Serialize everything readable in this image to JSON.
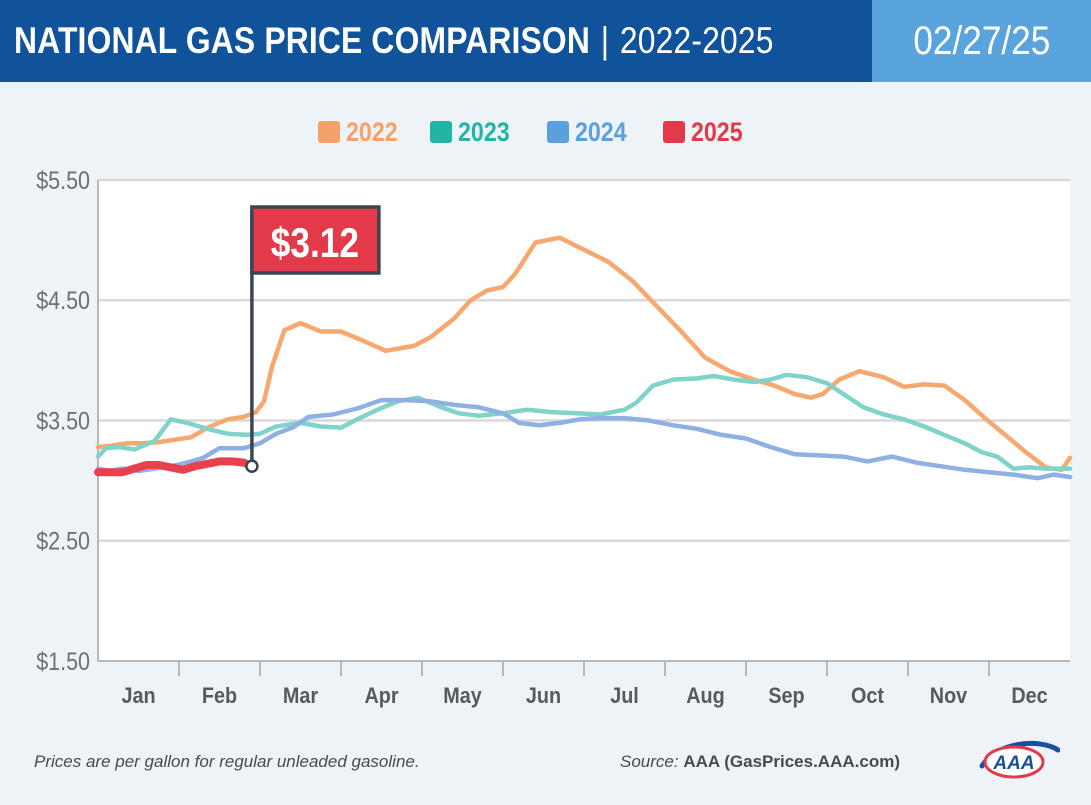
{
  "header": {
    "title_main": "NATIONAL GAS PRICE COMPARISON",
    "title_sep": "|",
    "title_range": "2022-2025",
    "date": "02/27/25"
  },
  "colors": {
    "header_bg": "#11539a",
    "date_bg": "#5aa4de",
    "y2022": "#f7a86f",
    "y2023": "#7fd3c9",
    "y2024": "#8fb0e3",
    "y2025": "#e8404d",
    "legend_2022": "#f4a26a",
    "legend_2023": "#22b4a5",
    "legend_2024": "#5aa0dc",
    "legend_2025": "#e23a48"
  },
  "footer": {
    "note": "Prices are per gallon for regular unleaded gasoline.",
    "source_label": "Source:",
    "source_value": "AAA (GasPrices.AAA.com)",
    "logo_text": "AAA"
  },
  "chart_data": {
    "type": "line",
    "title": "",
    "xlabel": "",
    "ylabel": "",
    "ylim": [
      1.5,
      5.5
    ],
    "yticks": [
      "$5.50",
      "$4.50",
      "$3.50",
      "$2.50",
      "$1.50"
    ],
    "ytick_values": [
      5.5,
      4.5,
      3.5,
      2.5,
      1.5
    ],
    "xlim": [
      0,
      12
    ],
    "categories": [
      "Jan",
      "Feb",
      "Mar",
      "Apr",
      "May",
      "Jun",
      "Jul",
      "Aug",
      "Sep",
      "Oct",
      "Nov",
      "Dec"
    ],
    "grid": true,
    "legend": "top-center",
    "callout": {
      "label": "$3.12",
      "x": 1.9,
      "value": 3.12
    },
    "series": [
      {
        "name": "2022",
        "x": [
          0,
          0.15,
          0.35,
          0.55,
          0.75,
          0.95,
          1.15,
          1.35,
          1.6,
          1.8,
          1.95,
          2.05,
          2.15,
          2.3,
          2.5,
          2.75,
          3.0,
          3.25,
          3.55,
          3.9,
          4.1,
          4.4,
          4.6,
          4.8,
          5.0,
          5.15,
          5.4,
          5.7,
          6.0,
          6.3,
          6.6,
          6.9,
          7.2,
          7.5,
          7.8,
          8.1,
          8.35,
          8.6,
          8.8,
          8.95,
          9.15,
          9.4,
          9.7,
          9.95,
          10.2,
          10.45,
          10.7,
          10.95,
          11.2,
          11.45,
          11.7,
          11.9,
          12.0
        ],
        "values": [
          3.28,
          3.29,
          3.31,
          3.31,
          3.32,
          3.34,
          3.36,
          3.44,
          3.51,
          3.53,
          3.57,
          3.66,
          3.95,
          4.25,
          4.31,
          4.24,
          4.24,
          4.17,
          4.08,
          4.12,
          4.19,
          4.35,
          4.5,
          4.58,
          4.61,
          4.72,
          4.98,
          5.02,
          4.92,
          4.82,
          4.66,
          4.45,
          4.24,
          4.02,
          3.91,
          3.84,
          3.79,
          3.72,
          3.69,
          3.72,
          3.84,
          3.91,
          3.86,
          3.78,
          3.8,
          3.79,
          3.67,
          3.52,
          3.38,
          3.24,
          3.11,
          3.09,
          3.19
        ]
      },
      {
        "name": "2023",
        "x": [
          0,
          0.1,
          0.25,
          0.45,
          0.7,
          0.9,
          1.1,
          1.35,
          1.6,
          1.85,
          2.0,
          2.2,
          2.5,
          2.75,
          3.0,
          3.2,
          3.45,
          3.7,
          3.95,
          4.2,
          4.45,
          4.7,
          5.0,
          5.3,
          5.6,
          5.9,
          6.2,
          6.5,
          6.65,
          6.85,
          7.1,
          7.4,
          7.6,
          7.85,
          8.1,
          8.3,
          8.5,
          8.75,
          9.0,
          9.2,
          9.45,
          9.7,
          9.95,
          10.2,
          10.45,
          10.7,
          10.9,
          11.1,
          11.3,
          11.5,
          11.7,
          12.0
        ],
        "values": [
          3.2,
          3.27,
          3.28,
          3.26,
          3.33,
          3.51,
          3.48,
          3.43,
          3.39,
          3.38,
          3.39,
          3.45,
          3.48,
          3.45,
          3.44,
          3.51,
          3.59,
          3.66,
          3.69,
          3.62,
          3.56,
          3.54,
          3.56,
          3.59,
          3.57,
          3.56,
          3.55,
          3.59,
          3.65,
          3.79,
          3.84,
          3.85,
          3.87,
          3.84,
          3.82,
          3.84,
          3.88,
          3.86,
          3.81,
          3.72,
          3.61,
          3.55,
          3.51,
          3.45,
          3.38,
          3.31,
          3.24,
          3.2,
          3.1,
          3.11,
          3.1,
          3.1
        ]
      },
      {
        "name": "2024",
        "x": [
          0,
          0.15,
          0.3,
          0.5,
          0.7,
          0.9,
          1.1,
          1.3,
          1.5,
          1.8,
          2.0,
          2.2,
          2.4,
          2.6,
          2.9,
          3.2,
          3.5,
          3.8,
          4.1,
          4.4,
          4.7,
          5.0,
          5.2,
          5.45,
          5.7,
          5.95,
          6.2,
          6.5,
          6.8,
          7.1,
          7.4,
          7.7,
          8.0,
          8.3,
          8.6,
          8.9,
          9.2,
          9.5,
          9.8,
          10.1,
          10.4,
          10.7,
          11.0,
          11.3,
          11.6,
          11.8,
          12.0
        ],
        "values": [
          3.1,
          3.08,
          3.1,
          3.08,
          3.1,
          3.12,
          3.15,
          3.19,
          3.27,
          3.27,
          3.31,
          3.39,
          3.44,
          3.53,
          3.55,
          3.6,
          3.67,
          3.67,
          3.66,
          3.63,
          3.61,
          3.56,
          3.48,
          3.46,
          3.48,
          3.51,
          3.52,
          3.52,
          3.5,
          3.46,
          3.43,
          3.38,
          3.35,
          3.28,
          3.22,
          3.21,
          3.2,
          3.16,
          3.2,
          3.15,
          3.12,
          3.09,
          3.07,
          3.05,
          3.02,
          3.05,
          3.03
        ]
      },
      {
        "name": "2025",
        "x": [
          0,
          0.15,
          0.3,
          0.45,
          0.6,
          0.75,
          0.9,
          1.05,
          1.2,
          1.35,
          1.5,
          1.65,
          1.8,
          1.9
        ],
        "values": [
          3.07,
          3.07,
          3.07,
          3.1,
          3.13,
          3.13,
          3.11,
          3.09,
          3.12,
          3.14,
          3.16,
          3.16,
          3.15,
          3.12
        ]
      }
    ]
  }
}
